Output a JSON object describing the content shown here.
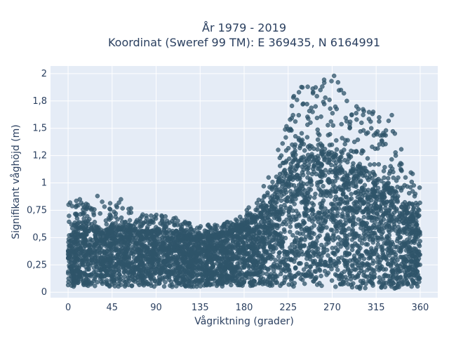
{
  "chart_data": {
    "type": "scatter",
    "title": "År 1979 - 2019",
    "subtitle": "Koordinat (Sweref 99 TM): E 369435, N 6164991",
    "xlabel": "Vågriktning (grader)",
    "ylabel": "Signifikant våghöjd (m)",
    "xlim": [
      -18,
      378
    ],
    "ylim": [
      -0.05,
      2.07
    ],
    "x_ticks": [
      0,
      45,
      90,
      135,
      180,
      225,
      270,
      315,
      360
    ],
    "x_tick_labels": [
      "0",
      "45",
      "90",
      "135",
      "180",
      "225",
      "270",
      "315",
      "360"
    ],
    "y_ticks": [
      0,
      0.25,
      0.5,
      0.75,
      1,
      1.25,
      1.5,
      1.75,
      2
    ],
    "y_tick_labels": [
      "0",
      "0,25",
      "0,5",
      "0,75",
      "1",
      "1,2",
      "1,5",
      "1,8",
      "2"
    ],
    "grid": true,
    "marker_color": "#2f5469",
    "plot_background": "#e5ecf6",
    "envelope": {
      "x": [
        0,
        10,
        20,
        35,
        45,
        60,
        80,
        100,
        120,
        135,
        150,
        165,
        180,
        195,
        210,
        225,
        240,
        255,
        270,
        285,
        300,
        315,
        330,
        345,
        360
      ],
      "lower": [
        0.05,
        0.05,
        0.05,
        0.05,
        0.05,
        0.05,
        0.05,
        0.05,
        0.05,
        0.05,
        0.05,
        0.05,
        0.05,
        0.05,
        0.05,
        0.05,
        0.05,
        0.05,
        0.05,
        0.04,
        0.03,
        0.03,
        0.03,
        0.04,
        0.05
      ],
      "dense_upper": [
        0.45,
        0.6,
        0.6,
        0.55,
        0.6,
        0.58,
        0.55,
        0.55,
        0.52,
        0.5,
        0.52,
        0.55,
        0.62,
        0.7,
        0.85,
        1.2,
        1.35,
        1.3,
        1.25,
        1.2,
        1.15,
        1.05,
        0.95,
        0.8,
        0.55
      ],
      "max": [
        0.82,
        0.85,
        0.82,
        0.88,
        0.85,
        0.78,
        0.72,
        0.7,
        0.65,
        0.62,
        0.62,
        0.65,
        0.75,
        0.85,
        1.05,
        1.85,
        1.9,
        1.95,
        1.98,
        1.85,
        1.7,
        1.62,
        1.6,
        1.2,
        0.96
      ]
    },
    "outliers": [
      {
        "x": 2,
        "y": 0.82
      },
      {
        "x": 12,
        "y": 0.85
      },
      {
        "x": 30,
        "y": 0.88
      },
      {
        "x": 54,
        "y": 0.85
      },
      {
        "x": 52,
        "y": 0.82
      },
      {
        "x": 20,
        "y": 0.8
      },
      {
        "x": 8,
        "y": 0.78
      },
      {
        "x": 80,
        "y": 0.7
      },
      {
        "x": 110,
        "y": 0.68
      },
      {
        "x": 125,
        "y": 0.6
      },
      {
        "x": 160,
        "y": 0.62
      },
      {
        "x": 186,
        "y": 0.72
      },
      {
        "x": 200,
        "y": 0.97
      },
      {
        "x": 205,
        "y": 1.05
      },
      {
        "x": 218,
        "y": 1.25
      },
      {
        "x": 226,
        "y": 1.48
      },
      {
        "x": 230,
        "y": 1.62
      },
      {
        "x": 234,
        "y": 1.76
      },
      {
        "x": 236,
        "y": 1.83
      },
      {
        "x": 240,
        "y": 1.72
      },
      {
        "x": 245,
        "y": 1.88
      },
      {
        "x": 250,
        "y": 1.65
      },
      {
        "x": 258,
        "y": 1.85
      },
      {
        "x": 263,
        "y": 1.78
      },
      {
        "x": 272,
        "y": 1.98
      },
      {
        "x": 276,
        "y": 1.92
      },
      {
        "x": 279,
        "y": 1.85
      },
      {
        "x": 282,
        "y": 1.82
      },
      {
        "x": 285,
        "y": 1.75
      },
      {
        "x": 290,
        "y": 1.62
      },
      {
        "x": 300,
        "y": 1.55
      },
      {
        "x": 305,
        "y": 1.45
      },
      {
        "x": 312,
        "y": 1.65
      },
      {
        "x": 318,
        "y": 1.6
      },
      {
        "x": 325,
        "y": 1.48
      },
      {
        "x": 331,
        "y": 1.62
      },
      {
        "x": 340,
        "y": 1.18
      },
      {
        "x": 350,
        "y": 0.96
      },
      {
        "x": 355,
        "y": 0.9
      },
      {
        "x": 358,
        "y": 0.76
      },
      {
        "x": 227,
        "y": 1.58
      },
      {
        "x": 253,
        "y": 1.7
      },
      {
        "x": 268,
        "y": 1.68
      },
      {
        "x": 295,
        "y": 1.58
      },
      {
        "x": 310,
        "y": 1.5
      },
      {
        "x": 322,
        "y": 1.35
      },
      {
        "x": 335,
        "y": 1.25
      },
      {
        "x": 345,
        "y": 1.05
      }
    ]
  }
}
